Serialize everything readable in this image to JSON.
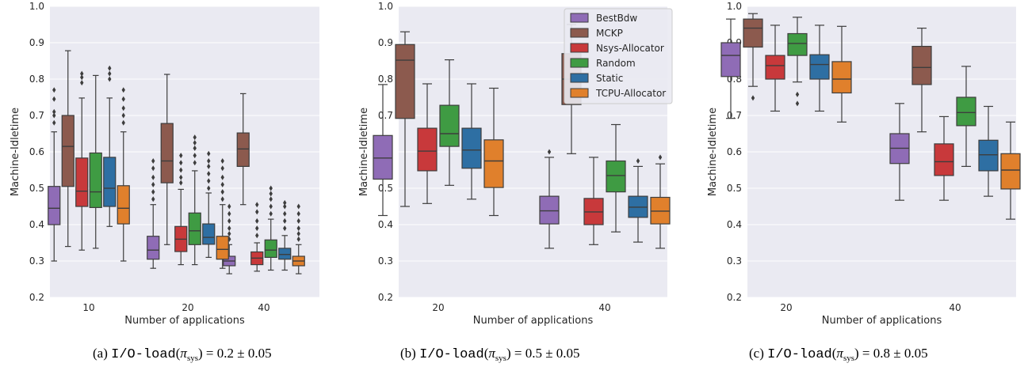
{
  "colors": {
    "panel_bg": "#eaeaf2",
    "grid": "#ffffff",
    "whisker": "#3d3d3d",
    "BestBdw": "#8f6cb6",
    "MCKP": "#8c5a4e",
    "Nsys-Allocator": "#c8393b",
    "Random": "#3f9b43",
    "Static": "#2e6fa3",
    "TCPU-Allocator": "#e0802c"
  },
  "chart_data": [
    {
      "type": "box",
      "caption": {
        "prefix": "(a)",
        "mono": "I/O-load",
        "pi": "π",
        "sub": "sys",
        "value": "0.2",
        "pm": "0.05"
      },
      "xlabel": "Number of applications",
      "ylabel": "Machine-Idletime",
      "ylim": [
        0.2,
        1.0
      ],
      "yticks": [
        "0.2",
        "0.3",
        "0.4",
        "0.5",
        "0.6",
        "0.7",
        "0.8",
        "0.9",
        "1.0"
      ],
      "grid": true,
      "categories": [
        "10",
        "20",
        "40"
      ],
      "series": [
        {
          "name": "BestBdw",
          "boxes": [
            {
              "min": 0.3,
              "q1": 0.4,
              "median": 0.445,
              "q3": 0.505,
              "max": 0.655,
              "outliers": [
                0.68,
                0.7,
                0.71,
                0.745,
                0.77
              ]
            },
            {
              "min": 0.28,
              "q1": 0.305,
              "median": 0.33,
              "q3": 0.368,
              "max": 0.455,
              "outliers": [
                0.47,
                0.49,
                0.51,
                0.53,
                0.555,
                0.575
              ]
            },
            {
              "min": 0.265,
              "q1": 0.287,
              "median": 0.3,
              "q3": 0.313,
              "max": 0.345,
              "outliers": [
                0.36,
                0.375,
                0.39,
                0.41,
                0.43,
                0.45
              ]
            }
          ]
        },
        {
          "name": "MCKP",
          "boxes": [
            {
              "min": 0.34,
              "q1": 0.505,
              "median": 0.615,
              "q3": 0.7,
              "max": 0.878,
              "outliers": []
            },
            {
              "min": 0.345,
              "q1": 0.515,
              "median": 0.575,
              "q3": 0.678,
              "max": 0.813,
              "outliers": []
            },
            {
              "min": 0.455,
              "q1": 0.56,
              "median": 0.608,
              "q3": 0.652,
              "max": 0.76,
              "outliers": []
            }
          ]
        },
        {
          "name": "Nsys-Allocator",
          "boxes": [
            {
              "min": 0.33,
              "q1": 0.45,
              "median": 0.492,
              "q3": 0.583,
              "max": 0.748,
              "outliers": [
                0.79,
                0.805,
                0.815
              ]
            },
            {
              "min": 0.29,
              "q1": 0.326,
              "median": 0.36,
              "q3": 0.395,
              "max": 0.497,
              "outliers": [
                0.515,
                0.53,
                0.55,
                0.57,
                0.59
              ]
            },
            {
              "min": 0.272,
              "q1": 0.29,
              "median": 0.308,
              "q3": 0.325,
              "max": 0.35,
              "outliers": [
                0.37,
                0.39,
                0.41,
                0.435,
                0.455
              ]
            }
          ]
        },
        {
          "name": "Random",
          "boxes": [
            {
              "min": 0.335,
              "q1": 0.447,
              "median": 0.49,
              "q3": 0.597,
              "max": 0.81,
              "outliers": []
            },
            {
              "min": 0.29,
              "q1": 0.345,
              "median": 0.383,
              "q3": 0.432,
              "max": 0.548,
              "outliers": [
                0.57,
                0.59,
                0.61,
                0.625,
                0.64
              ]
            },
            {
              "min": 0.275,
              "q1": 0.31,
              "median": 0.33,
              "q3": 0.358,
              "max": 0.415,
              "outliers": [
                0.43,
                0.45,
                0.47,
                0.485,
                0.5
              ]
            }
          ]
        },
        {
          "name": "Static",
          "boxes": [
            {
              "min": 0.395,
              "q1": 0.45,
              "median": 0.5,
              "q3": 0.585,
              "max": 0.748,
              "outliers": [
                0.8,
                0.815,
                0.83
              ]
            },
            {
              "min": 0.31,
              "q1": 0.346,
              "median": 0.365,
              "q3": 0.402,
              "max": 0.487,
              "outliers": [
                0.5,
                0.52,
                0.54,
                0.56,
                0.575,
                0.595
              ]
            },
            {
              "min": 0.275,
              "q1": 0.305,
              "median": 0.318,
              "q3": 0.335,
              "max": 0.37,
              "outliers": [
                0.39,
                0.41,
                0.43,
                0.45,
                0.46
              ]
            }
          ]
        },
        {
          "name": "TCPU-Allocator",
          "boxes": [
            {
              "min": 0.3,
              "q1": 0.402,
              "median": 0.445,
              "q3": 0.507,
              "max": 0.655,
              "outliers": [
                0.68,
                0.7,
                0.72,
                0.745,
                0.77
              ]
            },
            {
              "min": 0.28,
              "q1": 0.305,
              "median": 0.332,
              "q3": 0.368,
              "max": 0.455,
              "outliers": [
                0.47,
                0.49,
                0.51,
                0.53,
                0.555,
                0.575
              ]
            },
            {
              "min": 0.265,
              "q1": 0.287,
              "median": 0.3,
              "q3": 0.313,
              "max": 0.345,
              "outliers": [
                0.36,
                0.375,
                0.39,
                0.41,
                0.43,
                0.45
              ]
            }
          ]
        }
      ]
    },
    {
      "type": "box",
      "caption": {
        "prefix": "(b)",
        "mono": "I/O-load",
        "pi": "π",
        "sub": "sys",
        "value": "0.5",
        "pm": "0.05"
      },
      "xlabel": "Number of applications",
      "ylabel": "Machine-Idletime",
      "ylim": [
        0.2,
        1.0
      ],
      "yticks": [
        "0.2",
        "0.3",
        "0.4",
        "0.5",
        "0.6",
        "0.7",
        "0.8",
        "0.9",
        "1.0"
      ],
      "grid": true,
      "legend": {
        "placement": "top-right",
        "entries": [
          "BestBdw",
          "MCKP",
          "Nsys-Allocator",
          "Random",
          "Static",
          "TCPU-Allocator"
        ]
      },
      "categories": [
        "20",
        "40"
      ],
      "series": [
        {
          "name": "BestBdw",
          "boxes": [
            {
              "min": 0.425,
              "q1": 0.525,
              "median": 0.583,
              "q3": 0.645,
              "max": 0.785,
              "outliers": []
            },
            {
              "min": 0.335,
              "q1": 0.402,
              "median": 0.438,
              "q3": 0.478,
              "max": 0.585,
              "outliers": [
                0.6
              ]
            }
          ]
        },
        {
          "name": "MCKP",
          "boxes": [
            {
              "min": 0.45,
              "q1": 0.692,
              "median": 0.852,
              "q3": 0.895,
              "max": 0.93,
              "outliers": []
            },
            {
              "min": 0.595,
              "q1": 0.73,
              "median": 0.8,
              "q3": 0.87,
              "max": 0.95,
              "outliers": []
            }
          ]
        },
        {
          "name": "Nsys-Allocator",
          "boxes": [
            {
              "min": 0.458,
              "q1": 0.548,
              "median": 0.602,
              "q3": 0.665,
              "max": 0.787,
              "outliers": []
            },
            {
              "min": 0.345,
              "q1": 0.4,
              "median": 0.435,
              "q3": 0.472,
              "max": 0.585,
              "outliers": []
            }
          ]
        },
        {
          "name": "Random",
          "boxes": [
            {
              "min": 0.508,
              "q1": 0.615,
              "median": 0.65,
              "q3": 0.728,
              "max": 0.853,
              "outliers": []
            },
            {
              "min": 0.38,
              "q1": 0.49,
              "median": 0.535,
              "q3": 0.575,
              "max": 0.675,
              "outliers": []
            }
          ]
        },
        {
          "name": "Static",
          "boxes": [
            {
              "min": 0.47,
              "q1": 0.555,
              "median": 0.605,
              "q3": 0.665,
              "max": 0.787,
              "outliers": []
            },
            {
              "min": 0.352,
              "q1": 0.42,
              "median": 0.448,
              "q3": 0.478,
              "max": 0.56,
              "outliers": [
                0.575
              ]
            }
          ]
        },
        {
          "name": "TCPU-Allocator",
          "boxes": [
            {
              "min": 0.425,
              "q1": 0.502,
              "median": 0.575,
              "q3": 0.633,
              "max": 0.775,
              "outliers": []
            },
            {
              "min": 0.335,
              "q1": 0.402,
              "median": 0.437,
              "q3": 0.475,
              "max": 0.567,
              "outliers": [
                0.585
              ]
            }
          ]
        }
      ]
    },
    {
      "type": "box",
      "caption": {
        "prefix": "(c)",
        "mono": "I/O-load",
        "pi": "π",
        "sub": "sys",
        "value": "0.8",
        "pm": "0.05"
      },
      "xlabel": "Number of applications",
      "ylabel": "Machine-Idletime",
      "ylim": [
        0.2,
        1.0
      ],
      "yticks": [
        "0.2",
        "0.3",
        "0.4",
        "0.5",
        "0.6",
        "0.7",
        "0.8",
        "0.9",
        "1.0"
      ],
      "grid": true,
      "categories": [
        "20",
        "40"
      ],
      "series": [
        {
          "name": "BestBdw",
          "boxes": [
            {
              "min": 0.692,
              "q1": 0.807,
              "median": 0.865,
              "q3": 0.9,
              "max": 0.965,
              "outliers": []
            },
            {
              "min": 0.467,
              "q1": 0.568,
              "median": 0.61,
              "q3": 0.65,
              "max": 0.733,
              "outliers": []
            }
          ]
        },
        {
          "name": "MCKP",
          "boxes": [
            {
              "min": 0.78,
              "q1": 0.888,
              "median": 0.94,
              "q3": 0.965,
              "max": 0.98,
              "outliers": [
                0.748
              ]
            },
            {
              "min": 0.655,
              "q1": 0.785,
              "median": 0.832,
              "q3": 0.89,
              "max": 0.94,
              "outliers": []
            }
          ]
        },
        {
          "name": "Nsys-Allocator",
          "boxes": [
            {
              "min": 0.712,
              "q1": 0.8,
              "median": 0.837,
              "q3": 0.865,
              "max": 0.948,
              "outliers": []
            },
            {
              "min": 0.467,
              "q1": 0.535,
              "median": 0.573,
              "q3": 0.622,
              "max": 0.697,
              "outliers": []
            }
          ]
        },
        {
          "name": "Random",
          "boxes": [
            {
              "min": 0.792,
              "q1": 0.865,
              "median": 0.898,
              "q3": 0.925,
              "max": 0.97,
              "outliers": [
                0.733,
                0.758
              ]
            },
            {
              "min": 0.56,
              "q1": 0.672,
              "median": 0.708,
              "q3": 0.75,
              "max": 0.835,
              "outliers": []
            }
          ]
        },
        {
          "name": "Static",
          "boxes": [
            {
              "min": 0.712,
              "q1": 0.8,
              "median": 0.84,
              "q3": 0.867,
              "max": 0.948,
              "outliers": []
            },
            {
              "min": 0.478,
              "q1": 0.548,
              "median": 0.592,
              "q3": 0.632,
              "max": 0.725,
              "outliers": []
            }
          ]
        },
        {
          "name": "TCPU-Allocator",
          "boxes": [
            {
              "min": 0.682,
              "q1": 0.762,
              "median": 0.8,
              "q3": 0.848,
              "max": 0.945,
              "outliers": []
            },
            {
              "min": 0.415,
              "q1": 0.498,
              "median": 0.55,
              "q3": 0.595,
              "max": 0.682,
              "outliers": []
            }
          ]
        }
      ]
    }
  ]
}
